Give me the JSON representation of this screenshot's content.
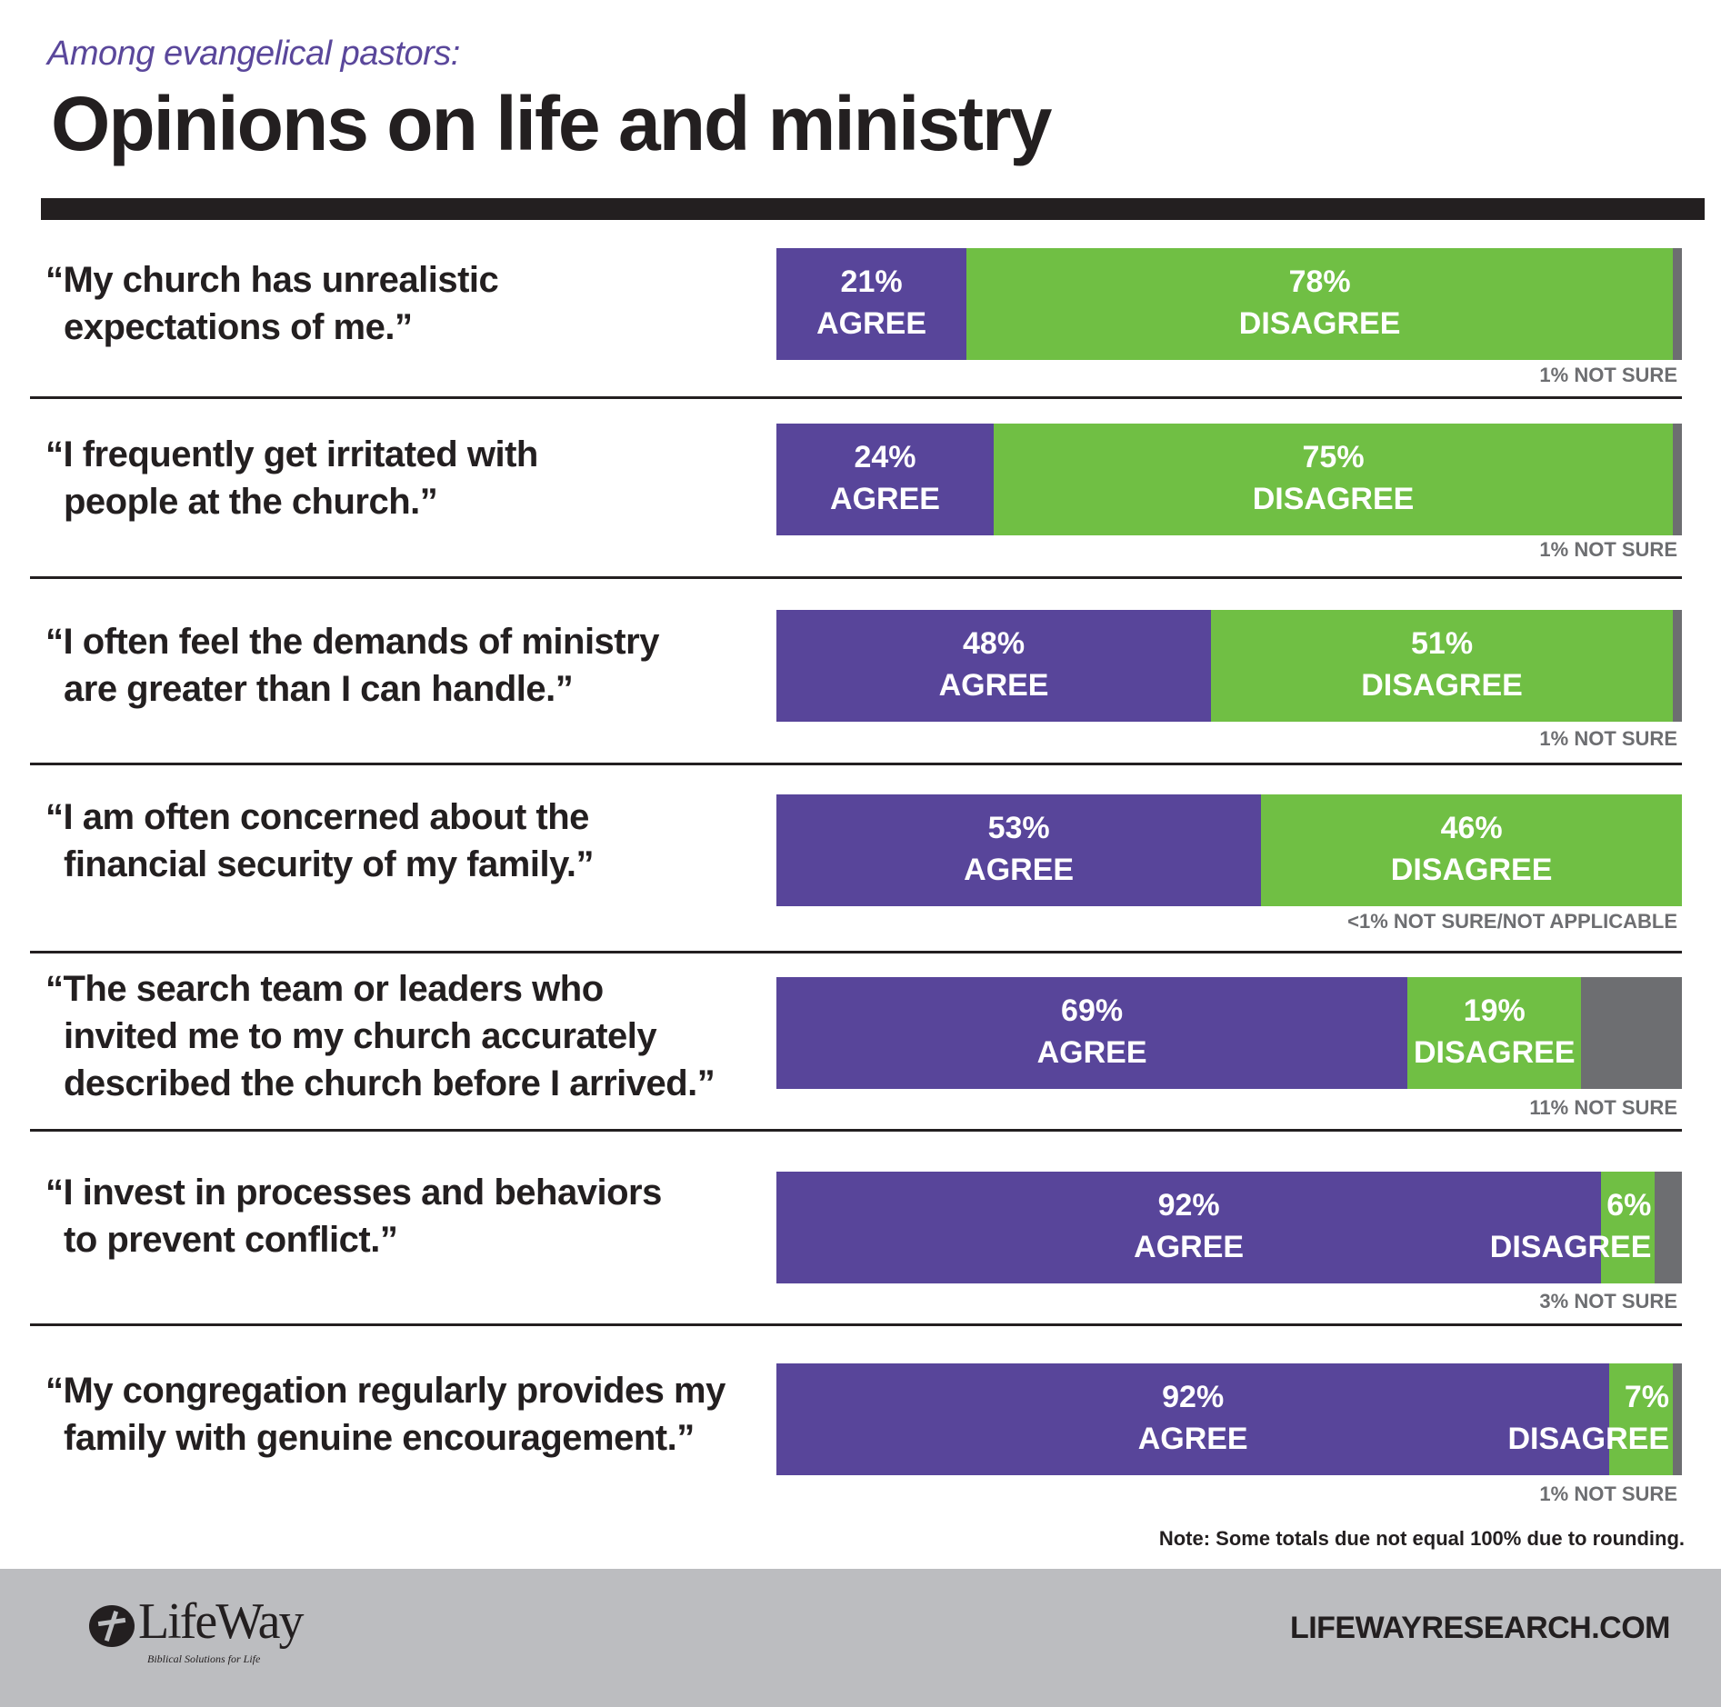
{
  "header": {
    "subtitle": "Among evangelical pastors:",
    "title": "Opinions on life and ministry"
  },
  "colors": {
    "agree": "#58459a",
    "disagree": "#70bf44",
    "not_sure": "#6d6e71",
    "text": "#231f20",
    "subtitle": "#5a479b",
    "footer_bg": "#bcbdc0"
  },
  "chart_data": {
    "type": "bar",
    "orientation": "horizontal-stacked-100",
    "title": "Opinions on life and ministry",
    "subtitle": "Among evangelical pastors:",
    "series_names": [
      "Agree",
      "Disagree",
      "Not sure"
    ],
    "categories": [
      "My church has unrealistic expectations of me.",
      "I frequently get irritated with people at the church.",
      "I often feel the demands of ministry are greater than I can handle.",
      "I am often concerned about the financial security of my family.",
      "The search team or leaders who invited me to my church accurately described the church before I arrived.",
      "I invest in processes and behaviors to prevent conflict.",
      "My congregation regularly provides my family with genuine encouragement."
    ],
    "series": [
      {
        "name": "Agree",
        "values": [
          21,
          24,
          48,
          53,
          69,
          92,
          92
        ]
      },
      {
        "name": "Disagree",
        "values": [
          78,
          75,
          51,
          46,
          19,
          6,
          7
        ]
      },
      {
        "name": "Not sure",
        "values": [
          1,
          1,
          1,
          0.5,
          11,
          3,
          1
        ]
      }
    ],
    "xlim": [
      0,
      100
    ],
    "grid": false,
    "legend": "none"
  },
  "rows": [
    {
      "quote_lines": [
        "“My church has unrealistic",
        "expectations of me.”"
      ],
      "agree": 21,
      "disagree": 78,
      "not_sure": 1,
      "agree_pct": "21%",
      "agree_label": "AGREE",
      "disagree_pct": "78%",
      "disagree_label": "DISAGREE",
      "not_sure_note": "1% NOT SURE"
    },
    {
      "quote_lines": [
        "“I frequently get irritated with",
        "people at the church.”"
      ],
      "agree": 24,
      "disagree": 75,
      "not_sure": 1,
      "agree_pct": "24%",
      "agree_label": "AGREE",
      "disagree_pct": "75%",
      "disagree_label": "DISAGREE",
      "not_sure_note": "1% NOT SURE"
    },
    {
      "quote_lines": [
        "“I often feel the demands of ministry",
        "are greater than I can handle.”"
      ],
      "agree": 48,
      "disagree": 51,
      "not_sure": 1,
      "agree_pct": "48%",
      "agree_label": "AGREE",
      "disagree_pct": "51%",
      "disagree_label": "DISAGREE",
      "not_sure_note": "1% NOT SURE"
    },
    {
      "quote_lines": [
        "“I am often concerned about the",
        "financial security of my family.”"
      ],
      "agree": 53,
      "disagree": 46,
      "not_sure": 0,
      "agree_pct": "53%",
      "agree_label": "AGREE",
      "disagree_pct": "46%",
      "disagree_label": "DISAGREE",
      "not_sure_note": "<1% NOT SURE/NOT APPLICABLE"
    },
    {
      "quote_lines": [
        "“The search team or leaders who",
        "invited me to my church accurately",
        "described the church before I arrived.”"
      ],
      "agree": 69,
      "disagree": 19,
      "not_sure": 11,
      "agree_pct": "69%",
      "agree_label": "AGREE",
      "disagree_pct": "19%",
      "disagree_label": "DISAGREE",
      "not_sure_note": "11% NOT SURE"
    },
    {
      "quote_lines": [
        "“I invest in processes and behaviors",
        "to prevent conflict.”"
      ],
      "agree": 92,
      "disagree": 6,
      "not_sure": 3,
      "agree_pct": "92%",
      "agree_label": "AGREE",
      "disagree_pct": "6%",
      "disagree_label": "DISAGREE",
      "not_sure_note": "3% NOT SURE"
    },
    {
      "quote_lines": [
        "“My congregation regularly provides my",
        "family with genuine encouragement.”"
      ],
      "agree": 92,
      "disagree": 7,
      "not_sure": 1,
      "agree_pct": "92%",
      "agree_label": "AGREE",
      "disagree_pct": "7%",
      "disagree_label": "DISAGREE",
      "not_sure_note": "1% NOT SURE"
    }
  ],
  "footnote": "Note: Some totals due not equal 100% due to rounding.",
  "footer": {
    "logo_word": "LifeWay",
    "logo_tagline": "Biblical Solutions for Life",
    "logo_icon": "lifeway-cross-icon",
    "site_url": "LIFEWAYRESEARCH.COM"
  }
}
